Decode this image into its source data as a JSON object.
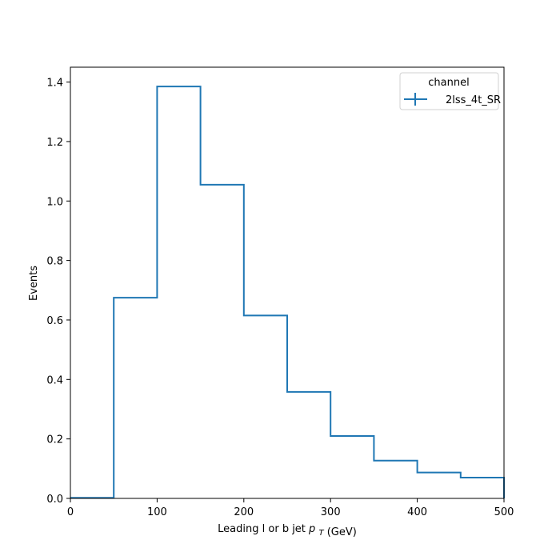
{
  "chart_data": {
    "type": "line",
    "xlabel": "Leading l or b jet",
    "xlabel_symbol": "p",
    "xlabel_subscript": "T",
    "xlabel_unit": "(GeV)",
    "ylabel": "Events",
    "xlim": [
      0,
      500
    ],
    "ylim": [
      0,
      1.45
    ],
    "xticks": [
      0,
      100,
      200,
      300,
      400,
      500
    ],
    "xtick_labels": [
      "0",
      "100",
      "200",
      "300",
      "400",
      "500"
    ],
    "yticks": [
      0.0,
      0.2,
      0.4,
      0.6,
      0.8,
      1.0,
      1.2,
      1.4
    ],
    "ytick_labels": [
      "0.0",
      "0.2",
      "0.4",
      "0.6",
      "0.8",
      "1.0",
      "1.2",
      "1.4"
    ],
    "bin_edges": [
      0,
      50,
      100,
      150,
      200,
      250,
      300,
      350,
      400,
      450,
      500
    ],
    "series": [
      {
        "name": "2lss_4t_SR",
        "values": [
          0.002,
          0.675,
          1.385,
          1.055,
          0.615,
          0.358,
          0.21,
          0.127,
          0.087,
          0.07
        ]
      }
    ],
    "legend": {
      "title": "channel",
      "position": "top-right"
    },
    "grid": false,
    "colors": {
      "series": "#1f77b4",
      "axis": "#000000",
      "background": "#ffffff"
    }
  }
}
